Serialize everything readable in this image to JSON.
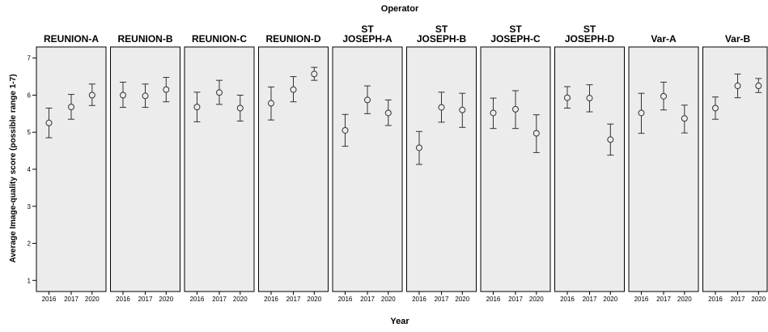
{
  "chart_data": {
    "type": "scatter",
    "title": "Operator",
    "xlabel": "Year",
    "ylabel": "Average Image-quality score (possible range 1-7)",
    "ylim": [
      0.7,
      7.3
    ],
    "yticks": [
      1,
      2,
      3,
      4,
      5,
      6,
      7
    ],
    "grid": false,
    "legend": "none",
    "years": [
      "2016",
      "2017",
      "2020"
    ],
    "panels": [
      {
        "label": [
          "REUNION-A"
        ],
        "means": [
          5.25,
          5.68,
          6.0
        ],
        "lower": [
          4.85,
          5.35,
          5.72
        ],
        "upper": [
          5.65,
          6.02,
          6.3
        ]
      },
      {
        "label": [
          "REUNION-B"
        ],
        "means": [
          6.0,
          5.98,
          6.15
        ],
        "lower": [
          5.67,
          5.67,
          5.82
        ],
        "upper": [
          6.35,
          6.3,
          6.48
        ]
      },
      {
        "label": [
          "REUNION-C"
        ],
        "means": [
          5.68,
          6.07,
          5.65
        ],
        "lower": [
          5.28,
          5.75,
          5.3
        ],
        "upper": [
          6.08,
          6.4,
          6.0
        ]
      },
      {
        "label": [
          "REUNION-D"
        ],
        "means": [
          5.78,
          6.15,
          6.57
        ],
        "lower": [
          5.33,
          5.82,
          6.4
        ],
        "upper": [
          6.22,
          6.5,
          6.75
        ]
      },
      {
        "label": [
          "ST",
          "JOSEPH-A"
        ],
        "means": [
          5.05,
          5.87,
          5.52
        ],
        "lower": [
          4.62,
          5.5,
          5.18
        ],
        "upper": [
          5.48,
          6.25,
          5.87
        ]
      },
      {
        "label": [
          "ST",
          "JOSEPH-B"
        ],
        "means": [
          4.58,
          5.67,
          5.6
        ],
        "lower": [
          4.13,
          5.27,
          5.13
        ],
        "upper": [
          5.02,
          6.08,
          6.05
        ]
      },
      {
        "label": [
          "ST",
          "JOSEPH-C"
        ],
        "means": [
          5.52,
          5.62,
          4.97
        ],
        "lower": [
          5.1,
          5.1,
          4.45
        ],
        "upper": [
          5.92,
          6.12,
          5.47
        ]
      },
      {
        "label": [
          "ST",
          "JOSEPH-D"
        ],
        "means": [
          5.93,
          5.92,
          4.8
        ],
        "lower": [
          5.65,
          5.55,
          4.38
        ],
        "upper": [
          6.23,
          6.28,
          5.22
        ]
      },
      {
        "label": [
          "Var-A"
        ],
        "means": [
          5.52,
          5.97,
          5.37
        ],
        "lower": [
          4.97,
          5.6,
          4.98
        ],
        "upper": [
          6.05,
          6.35,
          5.73
        ]
      },
      {
        "label": [
          "Var-B"
        ],
        "means": [
          5.65,
          6.25,
          6.25
        ],
        "lower": [
          5.35,
          5.93,
          6.07
        ],
        "upper": [
          5.95,
          6.57,
          6.45
        ]
      }
    ],
    "colors": {
      "panel_fill": "#ececec",
      "marker": "#333333",
      "frame": "#000000"
    }
  }
}
